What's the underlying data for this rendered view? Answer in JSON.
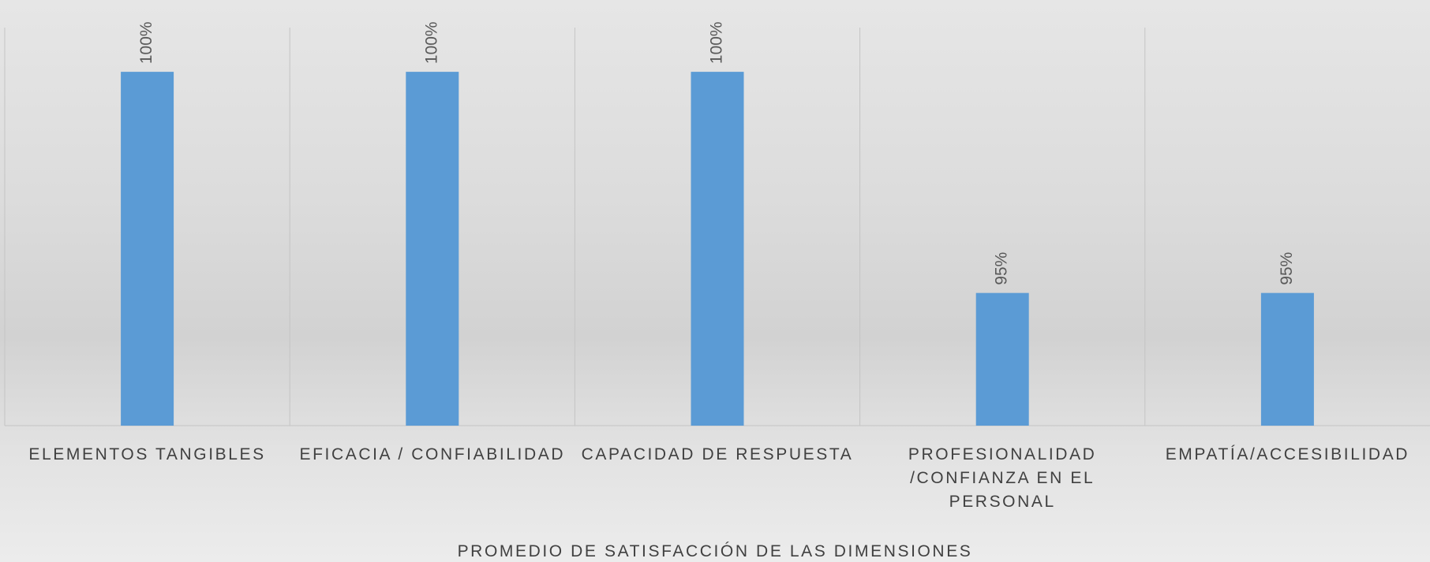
{
  "chart_data": {
    "type": "bar",
    "title": "PROMEDIO DE SATISFACCIÓN DE LAS DIMENSIONES",
    "categories": [
      "ELEMENTOS TANGIBLES",
      "EFICACIA / CONFIABILIDAD",
      "CAPACIDAD DE RESPUESTA",
      "PROFESIONALIDAD /CONFIANZA EN EL PERSONAL",
      "EMPATÍA/ACCESIBILIDAD"
    ],
    "values": [
      100,
      100,
      100,
      95,
      95
    ],
    "value_labels": [
      "100%",
      "100%",
      "100%",
      "95%",
      "95%"
    ],
    "color": "#5b9bd5",
    "ylim": [
      92,
      101
    ]
  }
}
